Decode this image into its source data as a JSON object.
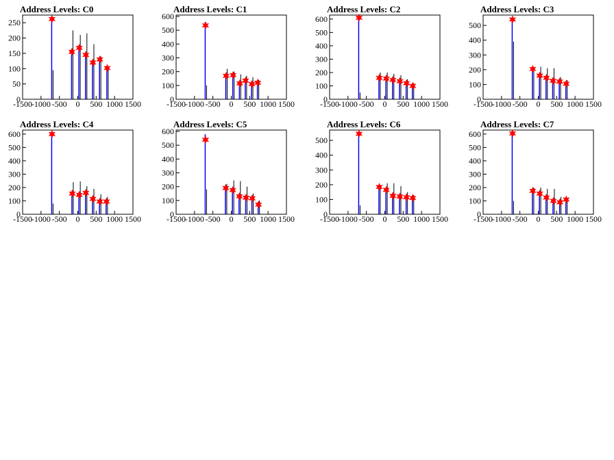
{
  "page": {
    "background": "#ffffff"
  },
  "style": {
    "hist_primary": "#0000ff",
    "hist_secondary": "#000000",
    "marker": "#ff0000"
  },
  "chart_data": [
    {
      "type": "histogram",
      "title": "Address Levels: C0",
      "xlim": [
        -1500,
        1500
      ],
      "ylim": [
        0,
        275
      ],
      "xticks": [
        "-1500",
        "-1000",
        "-500",
        "0",
        "500",
        "1000",
        "1500"
      ],
      "yticks": [
        0,
        50,
        100,
        150,
        200,
        250
      ],
      "peaks": [
        {
          "x": -700,
          "primary": 270,
          "secondary": 95
        },
        {
          "x": -160,
          "primary": 160,
          "secondary": 225
        },
        {
          "x": 40,
          "primary": 175,
          "secondary": 210
        },
        {
          "x": 220,
          "primary": 150,
          "secondary": 215
        },
        {
          "x": 410,
          "primary": 125,
          "secondary": 180
        },
        {
          "x": 600,
          "primary": 135,
          "secondary": 140
        },
        {
          "x": 800,
          "primary": 108,
          "secondary": 105
        }
      ],
      "markers": [
        {
          "x": -700,
          "y": 262
        },
        {
          "x": -160,
          "y": 155
        },
        {
          "x": 40,
          "y": 168
        },
        {
          "x": 220,
          "y": 145
        },
        {
          "x": 410,
          "y": 120
        },
        {
          "x": 600,
          "y": 130
        },
        {
          "x": 800,
          "y": 102
        }
      ]
    },
    {
      "type": "histogram",
      "title": "Address Levels: C1",
      "xlim": [
        -1500,
        1500
      ],
      "ylim": [
        0,
        610
      ],
      "xticks": [
        "-1500",
        "-1000",
        "-500",
        "0",
        "500",
        "1000",
        "1500"
      ],
      "yticks": [
        0,
        100,
        200,
        300,
        400,
        500,
        600
      ],
      "peaks": [
        {
          "x": -700,
          "primary": 560,
          "secondary": 100
        },
        {
          "x": -140,
          "primary": 175,
          "secondary": 220
        },
        {
          "x": 50,
          "primary": 175,
          "secondary": 200
        },
        {
          "x": 230,
          "primary": 130,
          "secondary": 180
        },
        {
          "x": 390,
          "primary": 140,
          "secondary": 170
        },
        {
          "x": 560,
          "primary": 120,
          "secondary": 160
        },
        {
          "x": 720,
          "primary": 125,
          "secondary": 140
        }
      ],
      "markers": [
        {
          "x": -700,
          "y": 535
        },
        {
          "x": -140,
          "y": 170
        },
        {
          "x": 50,
          "y": 175
        },
        {
          "x": 230,
          "y": 115
        },
        {
          "x": 390,
          "y": 135
        },
        {
          "x": 560,
          "y": 110
        },
        {
          "x": 720,
          "y": 120
        }
      ]
    },
    {
      "type": "histogram",
      "title": "Address Levels: C2",
      "xlim": [
        -1500,
        1500
      ],
      "ylim": [
        0,
        630
      ],
      "xticks": [
        "-1500",
        "-1000",
        "-500",
        "0",
        "500",
        "1000",
        "1500"
      ],
      "yticks": [
        0,
        100,
        200,
        300,
        400,
        500,
        600
      ],
      "peaks": [
        {
          "x": -700,
          "primary": 620,
          "secondary": 50
        },
        {
          "x": -150,
          "primary": 165,
          "secondary": 200
        },
        {
          "x": 40,
          "primary": 160,
          "secondary": 200
        },
        {
          "x": 220,
          "primary": 150,
          "secondary": 190
        },
        {
          "x": 410,
          "primary": 140,
          "secondary": 180
        },
        {
          "x": 590,
          "primary": 125,
          "secondary": 150
        },
        {
          "x": 760,
          "primary": 105,
          "secondary": 120
        }
      ],
      "markers": [
        {
          "x": -700,
          "y": 610
        },
        {
          "x": -150,
          "y": 160
        },
        {
          "x": 40,
          "y": 155
        },
        {
          "x": 220,
          "y": 145
        },
        {
          "x": 410,
          "y": 135
        },
        {
          "x": 590,
          "y": 120
        },
        {
          "x": 760,
          "y": 100
        }
      ]
    },
    {
      "type": "histogram",
      "title": "Address Levels: C3",
      "xlim": [
        -1500,
        1500
      ],
      "ylim": [
        0,
        570
      ],
      "xticks": [
        "-1500",
        "-1000",
        "-500",
        "0",
        "500",
        "1000",
        "1500"
      ],
      "yticks": [
        0,
        100,
        200,
        300,
        400,
        500
      ],
      "peaks": [
        {
          "x": -700,
          "primary": 555,
          "secondary": 390
        },
        {
          "x": -150,
          "primary": 210,
          "secondary": 190
        },
        {
          "x": 40,
          "primary": 165,
          "secondary": 220
        },
        {
          "x": 220,
          "primary": 150,
          "secondary": 210
        },
        {
          "x": 400,
          "primary": 130,
          "secondary": 210
        },
        {
          "x": 580,
          "primary": 125,
          "secondary": 150
        },
        {
          "x": 760,
          "primary": 110,
          "secondary": 130
        }
      ],
      "markers": [
        {
          "x": -700,
          "y": 540
        },
        {
          "x": -150,
          "y": 205
        },
        {
          "x": 40,
          "y": 160
        },
        {
          "x": 220,
          "y": 145
        },
        {
          "x": 400,
          "y": 125
        },
        {
          "x": 580,
          "y": 120
        },
        {
          "x": 760,
          "y": 105
        }
      ]
    },
    {
      "type": "histogram",
      "title": "Address Levels: C4",
      "xlim": [
        -1500,
        1500
      ],
      "ylim": [
        0,
        630
      ],
      "xticks": [
        "-1500",
        "-1000",
        "-500",
        "0",
        "500",
        "1000",
        "1500"
      ],
      "yticks": [
        0,
        100,
        200,
        300,
        400,
        500,
        600
      ],
      "peaks": [
        {
          "x": -700,
          "primary": 610,
          "secondary": 80
        },
        {
          "x": -150,
          "primary": 165,
          "secondary": 240
        },
        {
          "x": 40,
          "primary": 150,
          "secondary": 245
        },
        {
          "x": 220,
          "primary": 175,
          "secondary": 210
        },
        {
          "x": 410,
          "primary": 120,
          "secondary": 190
        },
        {
          "x": 600,
          "primary": 100,
          "secondary": 150
        },
        {
          "x": 780,
          "primary": 100,
          "secondary": 130
        }
      ],
      "markers": [
        {
          "x": -700,
          "y": 600
        },
        {
          "x": -150,
          "y": 155
        },
        {
          "x": 40,
          "y": 145
        },
        {
          "x": 220,
          "y": 160
        },
        {
          "x": 410,
          "y": 115
        },
        {
          "x": 600,
          "y": 95
        },
        {
          "x": 780,
          "y": 95
        }
      ]
    },
    {
      "type": "histogram",
      "title": "Address Levels: C5",
      "xlim": [
        -1500,
        1500
      ],
      "ylim": [
        0,
        610
      ],
      "xticks": [
        "-1500",
        "-1000",
        "-500",
        "0",
        "500",
        "1000",
        "1500"
      ],
      "yticks": [
        0,
        100,
        200,
        300,
        400,
        500,
        600
      ],
      "peaks": [
        {
          "x": -700,
          "primary": 580,
          "secondary": 180
        },
        {
          "x": -150,
          "primary": 200,
          "secondary": 220
        },
        {
          "x": 40,
          "primary": 175,
          "secondary": 245
        },
        {
          "x": 220,
          "primary": 135,
          "secondary": 240
        },
        {
          "x": 400,
          "primary": 130,
          "secondary": 200
        },
        {
          "x": 570,
          "primary": 120,
          "secondary": 150
        },
        {
          "x": 740,
          "primary": 75,
          "secondary": 100
        }
      ],
      "markers": [
        {
          "x": -700,
          "y": 540
        },
        {
          "x": -150,
          "y": 190
        },
        {
          "x": 40,
          "y": 175
        },
        {
          "x": 220,
          "y": 130
        },
        {
          "x": 400,
          "y": 120
        },
        {
          "x": 570,
          "y": 115
        },
        {
          "x": 740,
          "y": 70
        }
      ]
    },
    {
      "type": "histogram",
      "title": "Address Levels: C6",
      "xlim": [
        -1500,
        1500
      ],
      "ylim": [
        0,
        570
      ],
      "xticks": [
        "-1500",
        "-1000",
        "-500",
        "0",
        "500",
        "1000",
        "1500"
      ],
      "yticks": [
        0,
        100,
        200,
        300,
        400,
        500
      ],
      "peaks": [
        {
          "x": -700,
          "primary": 555,
          "secondary": 60
        },
        {
          "x": -150,
          "primary": 195,
          "secondary": 190
        },
        {
          "x": 40,
          "primary": 165,
          "secondary": 210
        },
        {
          "x": 220,
          "primary": 130,
          "secondary": 210
        },
        {
          "x": 410,
          "primary": 125,
          "secondary": 190
        },
        {
          "x": 590,
          "primary": 120,
          "secondary": 150
        },
        {
          "x": 760,
          "primary": 110,
          "secondary": 130
        }
      ],
      "markers": [
        {
          "x": -700,
          "y": 545
        },
        {
          "x": -150,
          "y": 185
        },
        {
          "x": 40,
          "y": 165
        },
        {
          "x": 220,
          "y": 125
        },
        {
          "x": 410,
          "y": 120
        },
        {
          "x": 590,
          "y": 115
        },
        {
          "x": 760,
          "y": 110
        }
      ]
    },
    {
      "type": "histogram",
      "title": "Address Levels: C7",
      "xlim": [
        -1500,
        1500
      ],
      "ylim": [
        0,
        630
      ],
      "xticks": [
        "-1500",
        "-1000",
        "-500",
        "0",
        "500",
        "1000",
        "1500"
      ],
      "yticks": [
        0,
        100,
        200,
        300,
        400,
        500,
        600
      ],
      "peaks": [
        {
          "x": -700,
          "primary": 620,
          "secondary": 100
        },
        {
          "x": -150,
          "primary": 185,
          "secondary": 200
        },
        {
          "x": 40,
          "primary": 160,
          "secondary": 200
        },
        {
          "x": 220,
          "primary": 130,
          "secondary": 190
        },
        {
          "x": 410,
          "primary": 110,
          "secondary": 190
        },
        {
          "x": 590,
          "primary": 95,
          "secondary": 130
        },
        {
          "x": 760,
          "primary": 110,
          "secondary": 120
        }
      ],
      "markers": [
        {
          "x": -700,
          "y": 605
        },
        {
          "x": -150,
          "y": 175
        },
        {
          "x": 40,
          "y": 155
        },
        {
          "x": 220,
          "y": 125
        },
        {
          "x": 410,
          "y": 100
        },
        {
          "x": 590,
          "y": 90
        },
        {
          "x": 760,
          "y": 110
        }
      ]
    }
  ]
}
